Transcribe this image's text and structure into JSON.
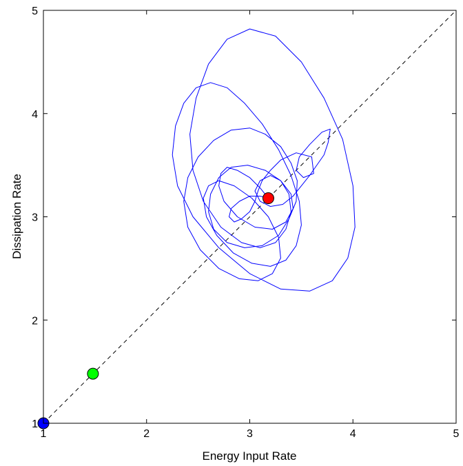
{
  "chart_data": {
    "type": "line",
    "title": "",
    "xlabel": "Energy Input Rate",
    "ylabel": "Dissipation Rate",
    "xlim": [
      1,
      5
    ],
    "ylim": [
      1,
      5
    ],
    "xticks": [
      1,
      2,
      3,
      4,
      5
    ],
    "yticks": [
      1,
      2,
      3,
      4,
      5
    ],
    "xtick_labels": [
      "1",
      "2",
      "3",
      "4",
      "5"
    ],
    "ytick_labels": [
      "1",
      "2",
      "3",
      "4",
      "5"
    ],
    "grid": false,
    "legend": "none",
    "reference_line": {
      "x": [
        1,
        5
      ],
      "y": [
        1,
        5
      ],
      "style": "dashed",
      "color": "#000000"
    },
    "trajectory": {
      "color": "#0000ff",
      "x": [
        3.18,
        3.1,
        3.0,
        2.88,
        2.78,
        2.72,
        2.7,
        2.75,
        2.88,
        3.05,
        3.22,
        3.35,
        3.42,
        3.4,
        3.3,
        3.15,
        2.98,
        2.82,
        2.7,
        2.62,
        2.6,
        2.65,
        2.78,
        2.95,
        3.12,
        3.28,
        3.38,
        3.45,
        3.46,
        3.4,
        3.3,
        3.15,
        3.0,
        2.82,
        2.65,
        2.5,
        2.4,
        2.36,
        2.4,
        2.52,
        2.7,
        2.9,
        3.08,
        3.22,
        3.3,
        3.28,
        3.18,
        3.02,
        2.85,
        2.7,
        2.6,
        2.55,
        2.58,
        2.68,
        2.84,
        3.02,
        3.2,
        3.35,
        3.45,
        3.5,
        3.48,
        3.4,
        3.28,
        3.12,
        2.95,
        2.78,
        2.62,
        2.48,
        2.36,
        2.28,
        2.25,
        2.3,
        2.45,
        2.7,
        3.0,
        3.3,
        3.58,
        3.8,
        3.95,
        4.02,
        4.0,
        3.9,
        3.72,
        3.5,
        3.25,
        3.0,
        2.78,
        2.6,
        2.48,
        2.42,
        2.45,
        2.55,
        2.72,
        2.92,
        3.1,
        3.25,
        3.35,
        3.4,
        3.38,
        3.3,
        3.2,
        3.1,
        3.05,
        3.1,
        3.2,
        3.32,
        3.42,
        3.5,
        3.58,
        3.65,
        3.72,
        3.76,
        3.78,
        3.7,
        3.58,
        3.48,
        3.45,
        3.52,
        3.62,
        3.6,
        3.45,
        3.3,
        3.2,
        3.12,
        3.08,
        3.05,
        3.0,
        2.92,
        2.85,
        2.8,
        2.82,
        2.9,
        3.0,
        3.1,
        3.18
      ],
      "y": [
        3.18,
        3.28,
        3.38,
        3.45,
        3.48,
        3.42,
        3.3,
        3.15,
        3.0,
        2.9,
        2.88,
        2.95,
        3.08,
        3.22,
        3.35,
        3.45,
        3.5,
        3.48,
        3.38,
        3.22,
        3.05,
        2.88,
        2.75,
        2.7,
        2.72,
        2.82,
        2.98,
        3.15,
        3.35,
        3.52,
        3.68,
        3.8,
        3.86,
        3.84,
        3.74,
        3.58,
        3.38,
        3.15,
        2.9,
        2.68,
        2.5,
        2.4,
        2.38,
        2.45,
        2.6,
        2.8,
        3.0,
        3.18,
        3.3,
        3.35,
        3.3,
        3.18,
        3.0,
        2.82,
        2.65,
        2.55,
        2.52,
        2.58,
        2.72,
        2.92,
        3.15,
        3.4,
        3.65,
        3.9,
        4.1,
        4.25,
        4.3,
        4.25,
        4.1,
        3.88,
        3.6,
        3.3,
        3.0,
        2.7,
        2.45,
        2.3,
        2.28,
        2.38,
        2.6,
        2.9,
        3.3,
        3.75,
        4.15,
        4.5,
        4.75,
        4.82,
        4.72,
        4.48,
        4.15,
        3.8,
        3.45,
        3.15,
        2.9,
        2.75,
        2.7,
        2.75,
        2.88,
        3.05,
        3.22,
        3.35,
        3.4,
        3.35,
        3.25,
        3.15,
        3.1,
        3.12,
        3.2,
        3.3,
        3.4,
        3.5,
        3.6,
        3.72,
        3.85,
        3.82,
        3.7,
        3.58,
        3.45,
        3.38,
        3.42,
        3.58,
        3.62,
        3.55,
        3.45,
        3.35,
        3.25,
        3.15,
        3.05,
        2.98,
        2.95,
        3.0,
        3.08,
        3.15,
        3.2,
        3.2,
        3.18
      ]
    },
    "points": [
      {
        "x": 1.0,
        "y": 1.0,
        "color": "#0000ff"
      },
      {
        "x": 1.48,
        "y": 1.48,
        "color": "#00ff00"
      },
      {
        "x": 3.18,
        "y": 3.18,
        "color": "#ff0000"
      }
    ]
  }
}
